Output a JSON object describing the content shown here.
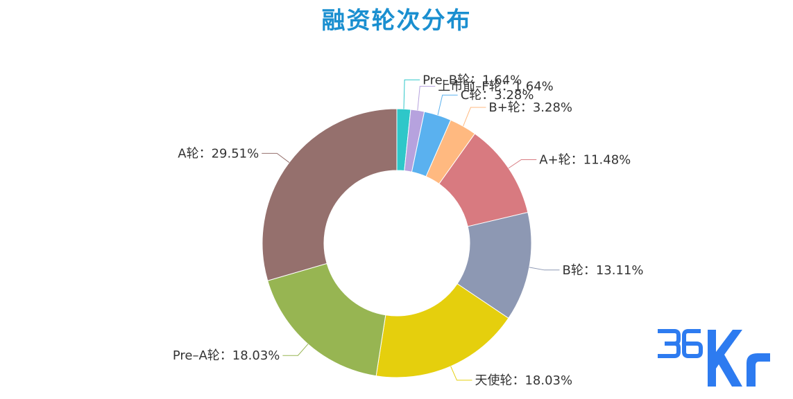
{
  "chart_data": {
    "type": "pie",
    "variant": "donut",
    "title": "融资轮次分布",
    "unit": "%",
    "series": [
      {
        "name": "Pre-B轮",
        "value": 1.64,
        "label": "Pre–B轮：1.64%",
        "color": "#2ec7c9"
      },
      {
        "name": "上市前-F轮",
        "value": 1.64,
        "label": "上市前–F轮：1.64%",
        "color": "#b6a2de"
      },
      {
        "name": "C轮",
        "value": 3.28,
        "label": "C轮：3.28%",
        "color": "#5ab1ef"
      },
      {
        "name": "B+轮",
        "value": 3.28,
        "label": "B+轮：3.28%",
        "color": "#ffb980"
      },
      {
        "name": "A+轮",
        "value": 11.48,
        "label": "A+轮：11.48%",
        "color": "#d87a80"
      },
      {
        "name": "B轮",
        "value": 13.11,
        "label": "B轮：13.11%",
        "color": "#8d98b3"
      },
      {
        "name": "天使轮",
        "value": 18.03,
        "label": "天使轮：18.03%",
        "color": "#e5cf0d"
      },
      {
        "name": "Pre-A轮",
        "value": 18.03,
        "label": "Pre–A轮：18.03%",
        "color": "#97b552"
      },
      {
        "name": "A轮",
        "value": 29.51,
        "label": "A轮：29.51%",
        "color": "#95706d"
      }
    ]
  },
  "colors": {
    "title": "#1a8fd0",
    "logo": "#2d7bf0"
  },
  "logo": {
    "text": "36Kr"
  }
}
